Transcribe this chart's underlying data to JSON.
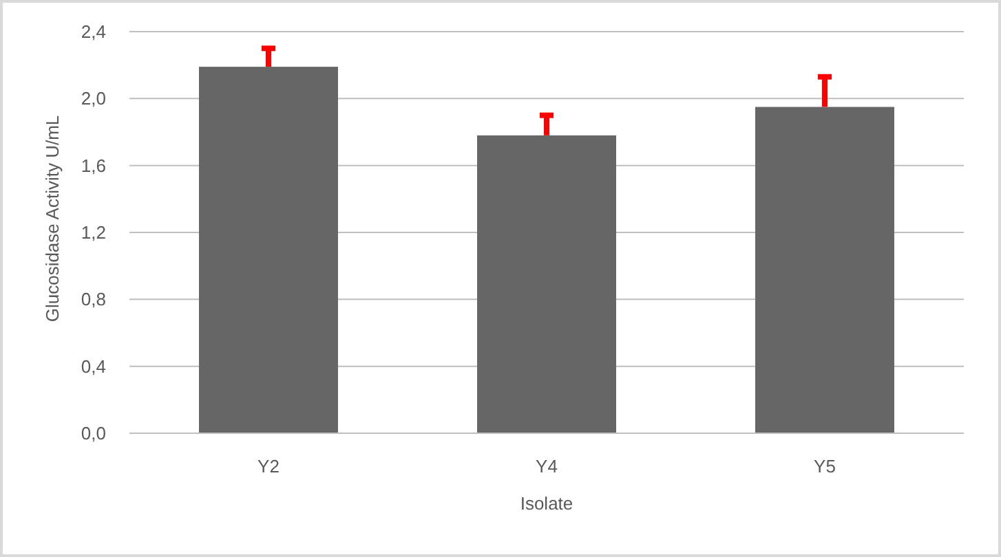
{
  "chart_data": {
    "type": "bar",
    "xlabel": "Isolate",
    "ylabel": "Glucosidase Activity U/mL",
    "categories": [
      "Y2",
      "Y4",
      "Y5"
    ],
    "series": [
      {
        "color": "#666666",
        "values": [
          2.19,
          1.78,
          1.95
        ],
        "errors": [
          [
            2.19,
            2.3
          ],
          [
            1.78,
            1.9
          ],
          [
            1.95,
            2.13
          ]
        ]
      }
    ],
    "ylim": [
      0,
      2.4
    ],
    "yticks": [
      {
        "value": 0,
        "label": "0,0"
      },
      {
        "value": 0.4,
        "label": "0,4"
      },
      {
        "value": 0.8,
        "label": "0,8"
      },
      {
        "value": 1.2,
        "label": "1,2"
      },
      {
        "value": 1.6,
        "label": "1,6"
      },
      {
        "value": 2.0,
        "label": "2,0"
      },
      {
        "value": 2.4,
        "label": "2,4"
      }
    ],
    "grid": "y"
  }
}
